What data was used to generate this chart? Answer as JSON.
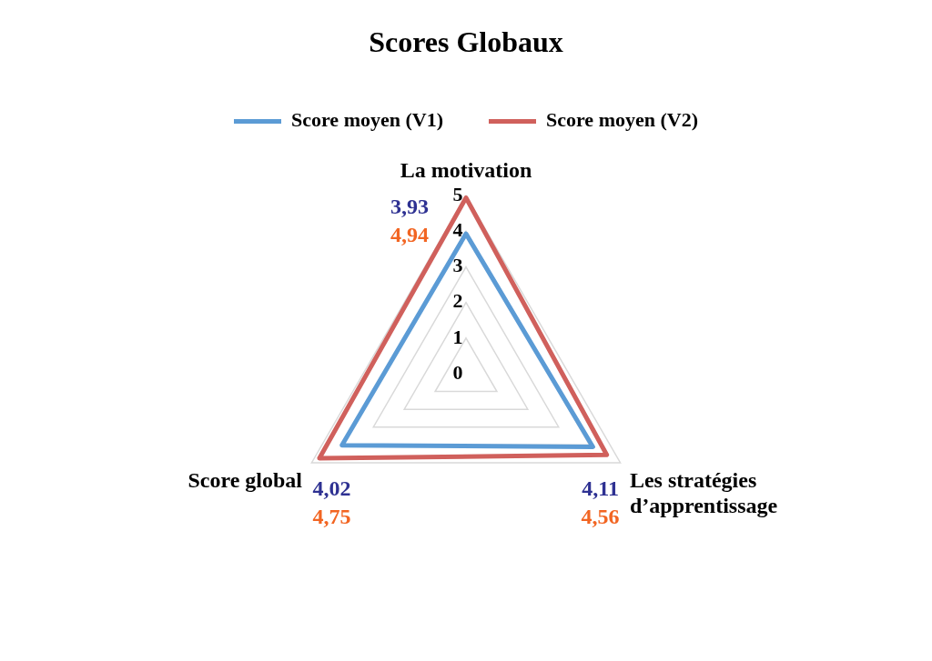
{
  "chart_data": {
    "type": "radar",
    "title": "Scores Globaux",
    "categories": [
      "La motivation",
      "Les stratégies d’apprentissage",
      "Score global"
    ],
    "series": [
      {
        "name": "Score moyen (V1)",
        "color": "#5b9bd5",
        "values": [
          3.93,
          4.11,
          4.02
        ],
        "value_labels": [
          "3,93",
          "4,11",
          "4,02"
        ]
      },
      {
        "name": "Score moyen (V2)",
        "color": "#d0605c",
        "values": [
          4.94,
          4.56,
          4.75
        ],
        "value_labels": [
          "4,94",
          "4,56",
          "4,75"
        ]
      }
    ],
    "ylim": [
      0,
      5
    ],
    "yticks": [
      0,
      1,
      2,
      3,
      4,
      5
    ],
    "grid": true,
    "legend": "top",
    "marker": "none"
  }
}
